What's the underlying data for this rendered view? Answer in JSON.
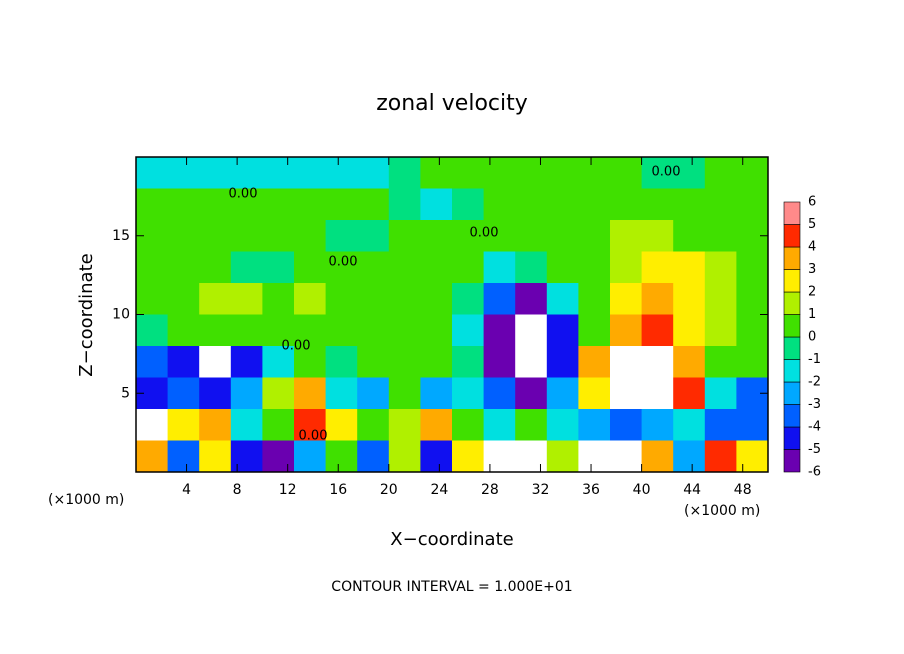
{
  "chart_data": {
    "type": "heatmap",
    "title": "zonal velocity",
    "x_label": "X−coordinate",
    "y_label": "Z−coordinate",
    "x_unit_left": "(×1000 m)",
    "x_unit_right": "(×1000 m)",
    "footer": "CONTOUR INTERVAL = 1.000E+01",
    "xlim": [
      0,
      50
    ],
    "ylim": [
      0,
      20
    ],
    "xticks": [
      4,
      8,
      12,
      16,
      20,
      24,
      28,
      32,
      36,
      40,
      44,
      48
    ],
    "yticks": [
      5,
      10,
      15
    ],
    "levels": [
      -6,
      -5,
      -4,
      -3,
      -2,
      -1,
      0,
      1,
      2,
      3,
      4,
      5,
      6
    ],
    "colors": [
      "#6a00b0",
      "#1010f0",
      "#0060ff",
      "#00a8ff",
      "#00e0e0",
      "#00e080",
      "#40e000",
      "#b0f000",
      "#ffee00",
      "#ffaa00",
      "#ff2a00",
      "#ff8a8a"
    ],
    "out_of_range_color": "#ffffff",
    "contour_labels": [
      "0.00",
      "0.00",
      "0.00",
      "0.00",
      "0.00",
      "0.00"
    ],
    "z": [
      [
        -1.5,
        -1.5,
        -1.5,
        -1,
        -1,
        -1.5,
        -1.5,
        -1,
        -0.5,
        0.5,
        0.5,
        0.5,
        0.5,
        0.5,
        0.2,
        0.2,
        -0.5,
        -0.5,
        0.5,
        0.5
      ],
      [
        0.5,
        0.5,
        0.5,
        0.5,
        0.5,
        0.5,
        0.5,
        1,
        -0.5,
        -1,
        -0.5,
        0.5,
        0.5,
        0.5,
        0.5,
        1,
        0.5,
        0.5,
        0.5,
        0.5
      ],
      [
        0.5,
        0.5,
        0.5,
        1,
        0.5,
        0.5,
        -0.5,
        -0.5,
        0.5,
        0.5,
        0.5,
        0.5,
        0.5,
        0.5,
        1,
        1.5,
        1.5,
        1,
        1,
        0.5
      ],
      [
        1,
        1,
        1,
        -0.5,
        -0.5,
        0.5,
        1,
        0.5,
        0.5,
        0.5,
        0.5,
        -1,
        -0.5,
        0.5,
        1,
        2,
        3,
        2.5,
        1.5,
        1
      ],
      [
        1,
        1,
        2,
        2,
        1,
        1.5,
        1,
        1,
        0.5,
        0.5,
        -0.5,
        -3,
        -5,
        -1,
        1,
        3,
        4,
        3,
        2,
        1
      ],
      [
        -0.5,
        0.5,
        1,
        1,
        0.5,
        1,
        0.5,
        0.5,
        0.5,
        0.5,
        -1,
        -5,
        -7,
        -4,
        1,
        4,
        5,
        3,
        1.5,
        1
      ],
      [
        -3,
        -4,
        -7,
        -4,
        -1,
        0.2,
        -0.5,
        0.5,
        0.5,
        0.5,
        -0.5,
        -5,
        -7,
        -4,
        4,
        7,
        7,
        4,
        1,
        0.2
      ],
      [
        -4,
        -3,
        -4,
        -2,
        2,
        4,
        -1,
        -2,
        1,
        -2,
        -1,
        -3,
        -5,
        -2,
        3,
        7,
        7,
        5,
        -1,
        -3
      ],
      [
        -7,
        3,
        4,
        -1,
        0.2,
        5,
        3,
        0.2,
        2,
        4,
        1,
        -1,
        0.2,
        -1,
        -2,
        -3,
        -2,
        -1,
        -3,
        -3
      ],
      [
        4,
        -3,
        3,
        -4,
        -5,
        -2,
        1,
        -3,
        2,
        -4,
        3,
        -7,
        -7,
        2,
        -7,
        -7,
        4,
        -2,
        5,
        3
      ]
    ]
  }
}
